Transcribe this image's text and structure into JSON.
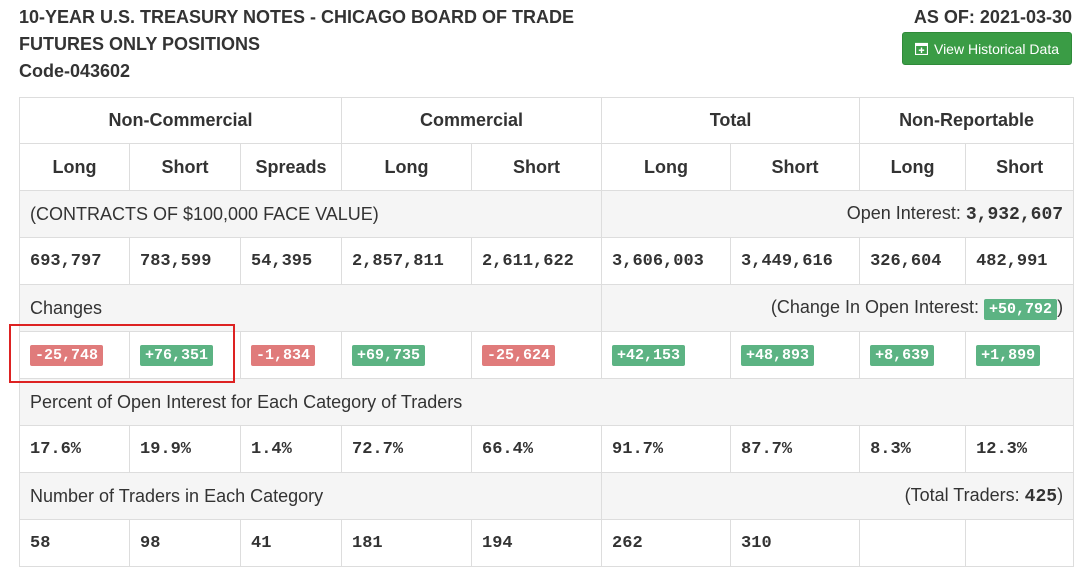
{
  "header": {
    "title_line1": "10-YEAR U.S. TREASURY NOTES - CHICAGO BOARD OF TRADE",
    "title_line2": "FUTURES ONLY POSITIONS",
    "title_line3": "Code-043602",
    "as_of": "AS OF: 2021-03-30",
    "history_button": "View Historical Data"
  },
  "groups": [
    "Non-Commercial",
    "Commercial",
    "Total",
    "Non-Reportable"
  ],
  "subheaders": [
    "Long",
    "Short",
    "Spreads",
    "Long",
    "Short",
    "Long",
    "Short",
    "Long",
    "Short"
  ],
  "contracts": {
    "label": "(CONTRACTS OF $100,000 FACE VALUE)",
    "open_interest_label": "Open Interest: ",
    "open_interest_value": "3,932,607",
    "values": [
      "693,797",
      "783,599",
      "54,395",
      "2,857,811",
      "2,611,622",
      "3,606,003",
      "3,449,616",
      "326,604",
      "482,991"
    ]
  },
  "changes": {
    "label": "Changes",
    "oi_change_prefix": "(Change In Open Interest: ",
    "oi_change_value": "+50,792",
    "oi_change_suffix": ")",
    "values": [
      "-25,748",
      "+76,351",
      "-1,834",
      "+69,735",
      "-25,624",
      "+42,153",
      "+48,893",
      "+8,639",
      "+1,899"
    ]
  },
  "percent": {
    "label": "Percent of Open Interest for Each Category of Traders",
    "values": [
      "17.6%",
      "19.9%",
      "1.4%",
      "72.7%",
      "66.4%",
      "91.7%",
      "87.7%",
      "8.3%",
      "12.3%"
    ]
  },
  "traders": {
    "label": "Number of Traders in Each Category",
    "total_prefix": "(Total Traders: ",
    "total_value": "425",
    "total_suffix": ")",
    "values": [
      "58",
      "98",
      "41",
      "181",
      "194",
      "262",
      "310",
      "",
      ""
    ]
  },
  "colors": {
    "positive": "#5cb383",
    "negative": "#e07b7b",
    "button": "#3a9c45",
    "highlight": "#dd2222"
  }
}
